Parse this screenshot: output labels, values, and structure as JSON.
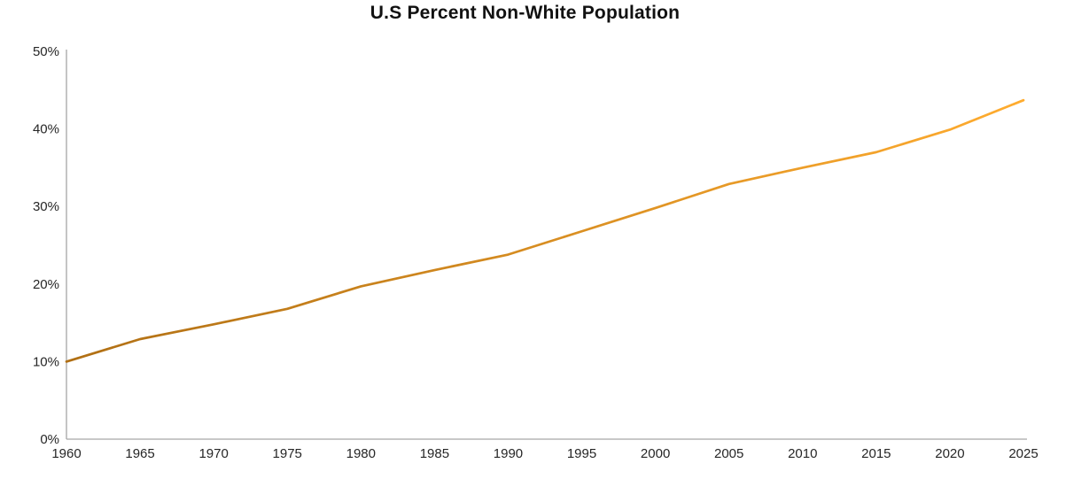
{
  "title": "U.S Percent Non-White Population",
  "chart_data": {
    "type": "line",
    "title": "U.S Percent Non-White Population",
    "xlabel": "",
    "ylabel": "",
    "x": [
      1960,
      1965,
      1970,
      1975,
      1980,
      1985,
      1990,
      1995,
      2000,
      2005,
      2010,
      2015,
      2020,
      2025
    ],
    "values": [
      10,
      12.9,
      14.8,
      16.8,
      19.7,
      21.8,
      23.8,
      26.8,
      29.8,
      32.9,
      35.0,
      37.0,
      39.9,
      43.7
    ],
    "x_ticks": [
      "1960",
      "1965",
      "1970",
      "1975",
      "1980",
      "1985",
      "1990",
      "1995",
      "2000",
      "2005",
      "2010",
      "2015",
      "2020",
      "2025"
    ],
    "y_ticks": [
      "0%",
      "10%",
      "20%",
      "30%",
      "40%",
      "50%"
    ],
    "y_tick_values": [
      0,
      10,
      20,
      30,
      40,
      50
    ],
    "xlim": [
      1960,
      2025
    ],
    "ylim": [
      0,
      50
    ],
    "grid": false,
    "legend": "none",
    "line_gradient_start": "#b06f14",
    "line_gradient_end": "#ffac2f",
    "axis_color": "#a6a6a6",
    "tick_label_color": "#262626",
    "title_color": "#111111",
    "background_color": "#ffffff"
  }
}
